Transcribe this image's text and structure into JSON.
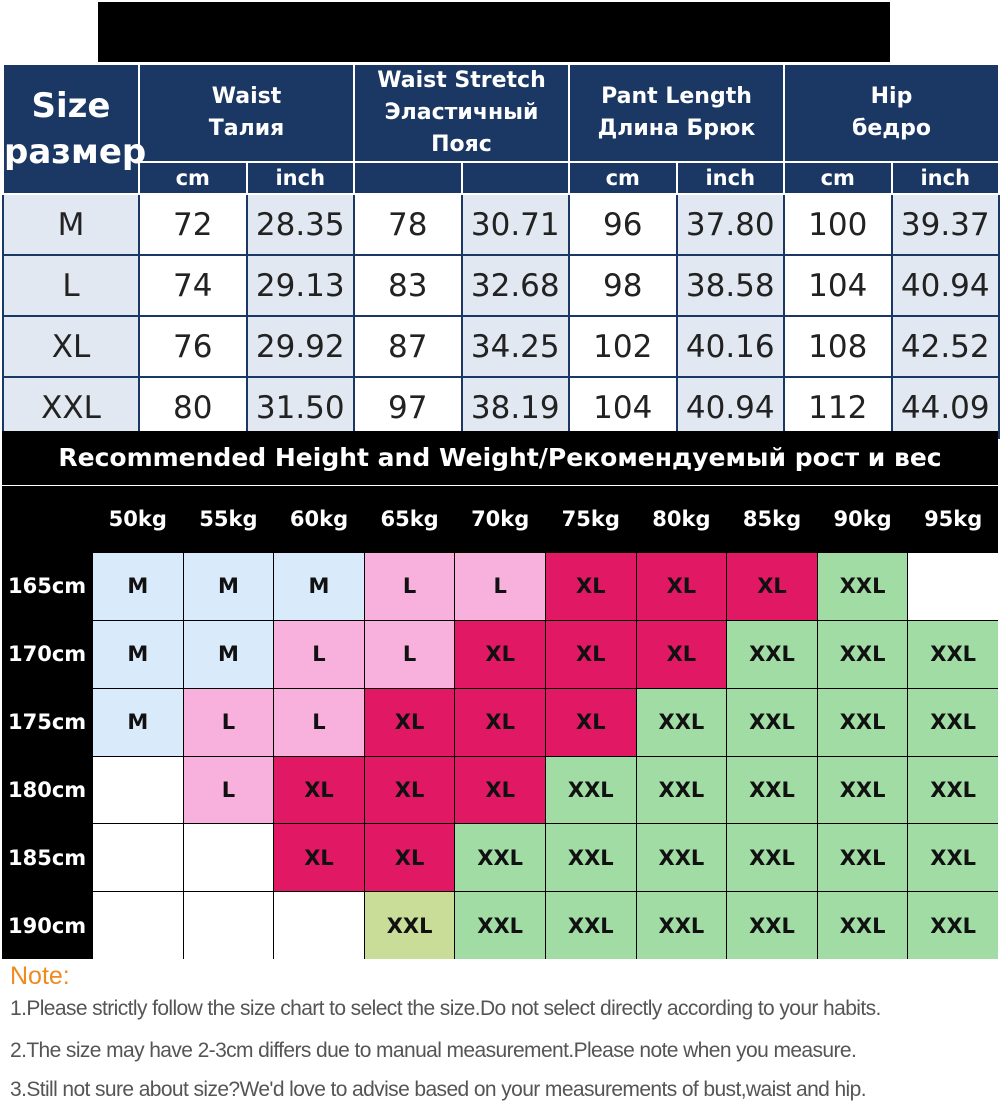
{
  "size_chart": {
    "corner": [
      "Size",
      "размер"
    ],
    "groups": [
      {
        "en": "Waist",
        "ru": "Талия",
        "units": [
          "cm",
          "inch"
        ]
      },
      {
        "en": "Waist Stretch",
        "ru": "Эластичный Пояс",
        "units": [
          "",
          ""
        ]
      },
      {
        "en": "Pant Length",
        "ru": "Длина Брюк",
        "units": [
          "cm",
          "inch"
        ]
      },
      {
        "en": "Hip",
        "ru": "бедро",
        "units": [
          "cm",
          "inch"
        ]
      }
    ],
    "rows": [
      {
        "size": "M",
        "values": [
          "72",
          "28.35",
          "78",
          "30.71",
          "96",
          "37.80",
          "100",
          "39.37"
        ]
      },
      {
        "size": "L",
        "values": [
          "74",
          "29.13",
          "83",
          "32.68",
          "98",
          "38.58",
          "104",
          "40.94"
        ]
      },
      {
        "size": "XL",
        "values": [
          "76",
          "29.92",
          "87",
          "34.25",
          "102",
          "40.16",
          "108",
          "42.52"
        ]
      },
      {
        "size": "XXL",
        "values": [
          "80",
          "31.50",
          "97",
          "38.19",
          "104",
          "40.94",
          "112",
          "44.09"
        ]
      }
    ]
  },
  "recommendation": {
    "title": "Recommended Height and Weight/Рекомендуемый рост и вес",
    "weights": [
      "50kg",
      "55kg",
      "60kg",
      "65kg",
      "70kg",
      "75kg",
      "80kg",
      "85kg",
      "90kg",
      "95kg"
    ],
    "rows": [
      {
        "height": "165cm",
        "sizes": [
          "M",
          "M",
          "M",
          "L",
          "L",
          "XL",
          "XL",
          "XL",
          "XXL",
          ""
        ]
      },
      {
        "height": "170cm",
        "sizes": [
          "M",
          "M",
          "L",
          "L",
          "XL",
          "XL",
          "XL",
          "XXL",
          "XXL",
          "XXL"
        ]
      },
      {
        "height": "175cm",
        "sizes": [
          "M",
          "L",
          "L",
          "XL",
          "XL",
          "XL",
          "XXL",
          "XXL",
          "XXL",
          "XXL"
        ]
      },
      {
        "height": "180cm",
        "sizes": [
          "",
          "L",
          "XL",
          "XL",
          "XL",
          "XXL",
          "XXL",
          "XXL",
          "XXL",
          "XXL"
        ]
      },
      {
        "height": "185cm",
        "sizes": [
          "",
          "",
          "XL",
          "XL",
          "XXL",
          "XXL",
          "XXL",
          "XXL",
          "XXL",
          "XXL"
        ]
      },
      {
        "height": "190cm",
        "sizes": [
          "",
          "",
          "",
          "XXL",
          "XXL",
          "XXL",
          "XXL",
          "XXL",
          "XXL",
          "XXL"
        ]
      }
    ],
    "colors": {
      "M": "#d9eafa",
      "L": "#f7b1dc",
      "XL": "#e11863",
      "XXL": "#a1dca5",
      "XXL_alt": "#c9dd98",
      "empty": "#ffffff"
    }
  },
  "notes": {
    "title": "Note:",
    "items": [
      "1.Please strictly follow the size chart to select the size.Do not select directly according to your habits.",
      "2.The size may have 2-3cm differs due to manual measurement.Please note when you measure.",
      "3.Still not sure about size?We'd love to advise based on your measurements of bust,waist and hip."
    ]
  }
}
